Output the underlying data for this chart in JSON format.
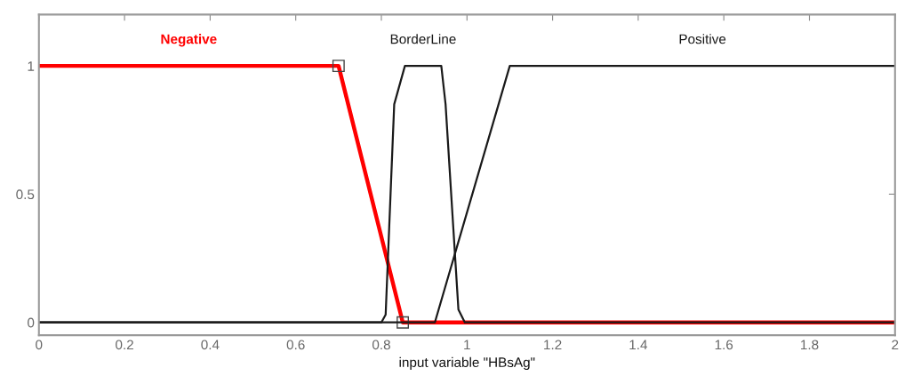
{
  "chart_data": {
    "type": "line",
    "xlabel": "input variable \"HBsAg\"",
    "xlim": [
      0,
      2
    ],
    "ylim": [
      -0.05,
      1.2
    ],
    "xticks": [
      0,
      0.2,
      0.4,
      0.6,
      0.8,
      1,
      1.2,
      1.4,
      1.6,
      1.8,
      2
    ],
    "yticks": [
      0,
      0.5,
      1
    ],
    "grid": false,
    "legend": false,
    "series": [
      {
        "name": "Negative",
        "color": "#ff0000",
        "marker": "square",
        "x": [
          0,
          0.7,
          0.85,
          2
        ],
        "values": [
          1,
          1,
          0,
          0
        ]
      },
      {
        "name": "BorderLine",
        "color": "#1a1a1a",
        "marker": "none",
        "x": [
          0,
          0.8,
          0.81,
          0.83,
          0.855,
          0.94,
          0.95,
          0.98,
          0.995,
          2
        ],
        "values": [
          0,
          0,
          0.03,
          0.85,
          1,
          1,
          0.85,
          0.05,
          0,
          0
        ]
      },
      {
        "name": "Positive",
        "color": "#1a1a1a",
        "marker": "none",
        "x": [
          0,
          0.925,
          1.1,
          2
        ],
        "values": [
          0,
          0,
          1,
          1
        ]
      }
    ]
  }
}
